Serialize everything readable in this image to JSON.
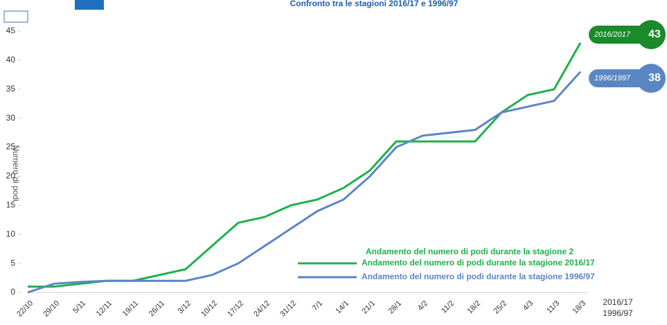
{
  "chart_data": {
    "type": "line",
    "title": "Confronto tra le stagioni 2016/17 e 1996/97",
    "y_label": "Numero di podi",
    "x_label": [
      "2016/17",
      "1996/97"
    ],
    "annotation": "Andamento del numero di podi durante la stagione 2",
    "categories": [
      "22/10",
      "29/10",
      "5/11",
      "12/11",
      "19/11",
      "26/11",
      "3/12",
      "10/12",
      "17/12",
      "24/12",
      "31/12",
      "7/1",
      "14/1",
      "21/1",
      "28/1",
      "4/2",
      "11/2",
      "18/2",
      "25/2",
      "4/3",
      "11/3",
      "18/3"
    ],
    "series": [
      {
        "name": "Andamento del numero di podi durante la stagione 2016/17",
        "color": "#1fb04a",
        "values": [
          1,
          1,
          1.5,
          2,
          2,
          3,
          4,
          8,
          12,
          13,
          15,
          16,
          18,
          21,
          26,
          26,
          26,
          26,
          31,
          34,
          35,
          43
        ]
      },
      {
        "name": "Andamento del numero di podi durante la stagione 1996/97",
        "color": "#5b86c4",
        "values": [
          0,
          1.5,
          1.8,
          2,
          2,
          2,
          2,
          3,
          5,
          8,
          11,
          14,
          16,
          20,
          25,
          27,
          27.5,
          28,
          31,
          32,
          33,
          38
        ]
      }
    ],
    "badges": [
      {
        "label": "2016/2017",
        "value": 43,
        "color": "#1a8a2a"
      },
      {
        "label": "1996/1997",
        "value": 38,
        "color": "#5b86c4"
      }
    ],
    "ylim": [
      0,
      45
    ],
    "yticks": [
      0,
      5,
      10,
      15,
      20,
      25,
      30,
      35,
      40,
      45
    ]
  }
}
